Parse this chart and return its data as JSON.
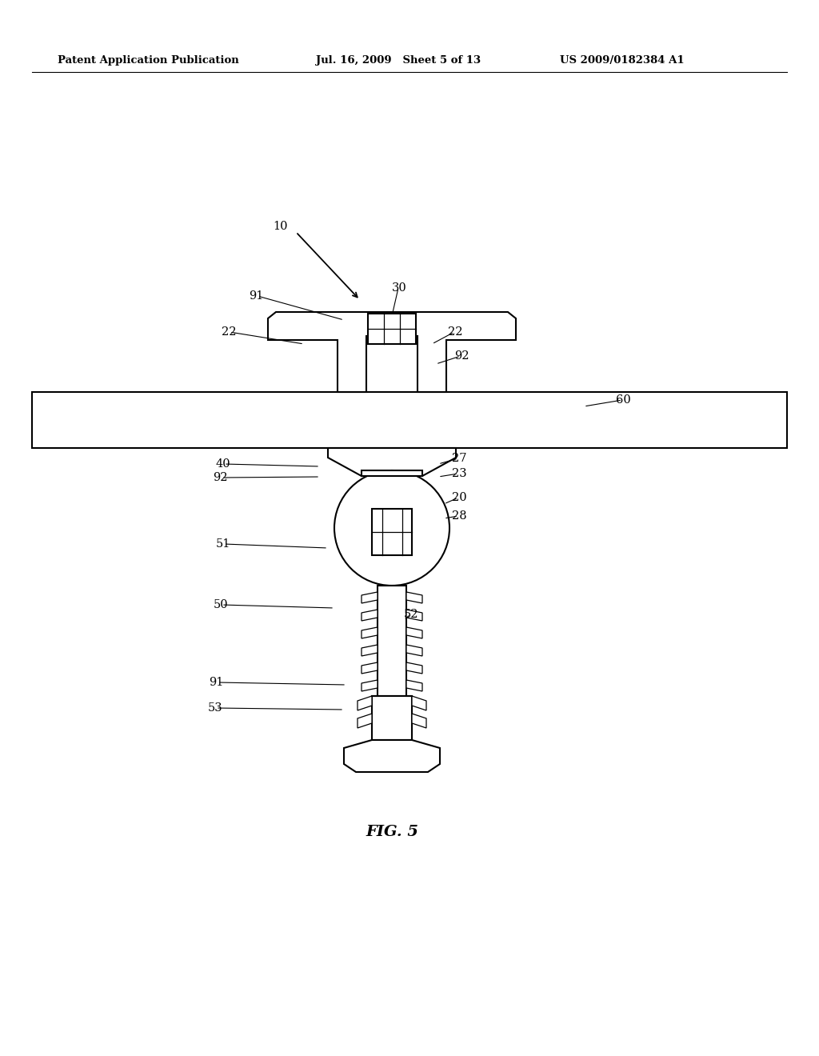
{
  "header_left": "Patent Application Publication",
  "header_mid": "Jul. 16, 2009   Sheet 5 of 13",
  "header_right": "US 2009/0182384 A1",
  "figure_label": "FIG. 5",
  "bg_color": "#ffffff",
  "line_color": "#000000"
}
